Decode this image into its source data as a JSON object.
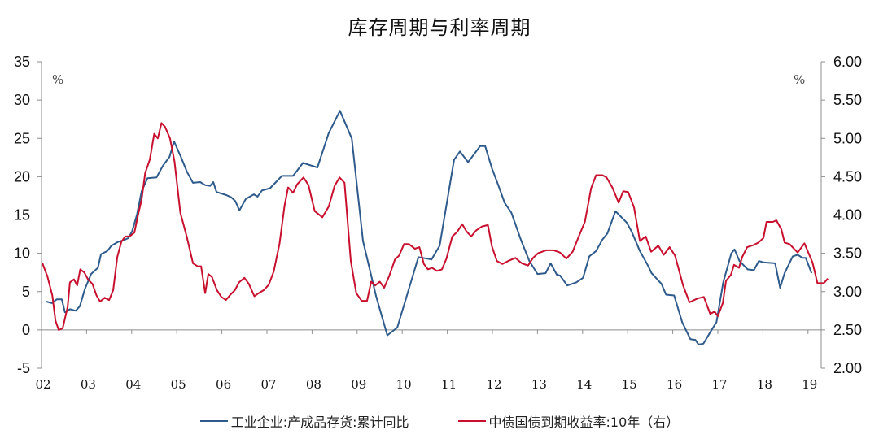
{
  "chart_data": {
    "type": "line",
    "title": "库存周期与利率周期",
    "xlabel": "",
    "x_tick_labels": [
      "02",
      "03",
      "04",
      "05",
      "06",
      "07",
      "08",
      "09",
      "10",
      "11",
      "12",
      "13",
      "14",
      "15",
      "16",
      "17",
      "18",
      "19"
    ],
    "x_range": [
      2002,
      2019.2
    ],
    "left_axis": {
      "unit": "%",
      "ylim": [
        -5,
        35
      ],
      "ticks": [
        35,
        30,
        25,
        20,
        15,
        10,
        5,
        0,
        -5
      ],
      "tick_labels": [
        "35",
        "30",
        "25",
        "20",
        "15",
        "10",
        "5",
        "0",
        "-5"
      ]
    },
    "right_axis": {
      "unit": "%",
      "ylim": [
        2.0,
        6.0
      ],
      "ticks": [
        6.0,
        5.5,
        5.0,
        4.5,
        4.0,
        3.5,
        3.0,
        2.5,
        2.0
      ],
      "tick_labels": [
        "6.00",
        "5.50",
        "5.00",
        "4.50",
        "4.00",
        "3.50",
        "3.00",
        "2.50",
        "2.00"
      ]
    },
    "grid": false,
    "legend_position": "bottom",
    "series": [
      {
        "name": "工业企业:产成品存货:累计同比",
        "axis": "left",
        "color": "#2E5A8C",
        "points": [
          [
            2002.11,
            3.7
          ],
          [
            2002.23,
            3.5
          ],
          [
            2002.34,
            4.0
          ],
          [
            2002.45,
            4.0
          ],
          [
            2002.52,
            2.3
          ],
          [
            2002.63,
            2.7
          ],
          [
            2002.76,
            2.5
          ],
          [
            2002.85,
            3.1
          ],
          [
            2002.96,
            5.3
          ],
          [
            2003.1,
            7.3
          ],
          [
            2003.25,
            8.1
          ],
          [
            2003.32,
            9.9
          ],
          [
            2003.46,
            10.3
          ],
          [
            2003.55,
            11.0
          ],
          [
            2003.7,
            11.5
          ],
          [
            2003.82,
            11.7
          ],
          [
            2003.93,
            12.0
          ],
          [
            2004.01,
            12.9
          ],
          [
            2004.12,
            15.1
          ],
          [
            2004.22,
            18.1
          ],
          [
            2004.35,
            19.8
          ],
          [
            2004.55,
            19.9
          ],
          [
            2004.69,
            21.4
          ],
          [
            2004.84,
            22.6
          ],
          [
            2004.94,
            24.6
          ],
          [
            2005.09,
            22.6
          ],
          [
            2005.23,
            20.6
          ],
          [
            2005.36,
            19.2
          ],
          [
            2005.52,
            19.3
          ],
          [
            2005.63,
            18.9
          ],
          [
            2005.74,
            18.8
          ],
          [
            2005.81,
            19.3
          ],
          [
            2005.88,
            18.0
          ],
          [
            2006.1,
            17.6
          ],
          [
            2006.21,
            17.3
          ],
          [
            2006.3,
            16.8
          ],
          [
            2006.39,
            15.6
          ],
          [
            2006.53,
            17.1
          ],
          [
            2006.71,
            17.7
          ],
          [
            2006.79,
            17.4
          ],
          [
            2006.89,
            18.2
          ],
          [
            2007.07,
            18.5
          ],
          [
            2007.33,
            20.1
          ],
          [
            2007.58,
            20.1
          ],
          [
            2007.8,
            21.8
          ],
          [
            2008.12,
            21.2
          ],
          [
            2008.37,
            25.7
          ],
          [
            2008.62,
            28.6
          ],
          [
            2008.88,
            25.0
          ],
          [
            2009.13,
            11.6
          ],
          [
            2009.42,
            4.4
          ],
          [
            2009.67,
            -0.7
          ],
          [
            2009.89,
            0.3
          ],
          [
            2010.36,
            9.5
          ],
          [
            2010.65,
            9.2
          ],
          [
            2010.83,
            11.0
          ],
          [
            2011.15,
            22.2
          ],
          [
            2011.28,
            23.3
          ],
          [
            2011.46,
            21.9
          ],
          [
            2011.73,
            24.0
          ],
          [
            2011.84,
            24.0
          ],
          [
            2011.99,
            21.1
          ],
          [
            2012.13,
            18.9
          ],
          [
            2012.27,
            16.6
          ],
          [
            2012.42,
            15.3
          ],
          [
            2012.63,
            11.8
          ],
          [
            2012.82,
            9.0
          ],
          [
            2013.0,
            7.3
          ],
          [
            2013.18,
            7.4
          ],
          [
            2013.29,
            8.7
          ],
          [
            2013.43,
            7.2
          ],
          [
            2013.5,
            7.1
          ],
          [
            2013.66,
            5.8
          ],
          [
            2013.86,
            6.2
          ],
          [
            2014.01,
            6.8
          ],
          [
            2014.15,
            9.6
          ],
          [
            2014.3,
            10.3
          ],
          [
            2014.44,
            11.8
          ],
          [
            2014.55,
            12.6
          ],
          [
            2014.73,
            15.5
          ],
          [
            2014.98,
            14.0
          ],
          [
            2015.09,
            12.8
          ],
          [
            2015.27,
            10.3
          ],
          [
            2015.45,
            8.4
          ],
          [
            2015.53,
            7.4
          ],
          [
            2015.75,
            6.0
          ],
          [
            2015.85,
            4.6
          ],
          [
            2016.03,
            4.5
          ],
          [
            2016.21,
            1.0
          ],
          [
            2016.39,
            -1.2
          ],
          [
            2016.5,
            -1.3
          ],
          [
            2016.57,
            -1.9
          ],
          [
            2016.68,
            -1.8
          ],
          [
            2016.83,
            -0.3
          ],
          [
            2016.97,
            1.0
          ],
          [
            2017.12,
            6.2
          ],
          [
            2017.3,
            10.0
          ],
          [
            2017.37,
            10.5
          ],
          [
            2017.48,
            9.0
          ],
          [
            2017.66,
            7.9
          ],
          [
            2017.8,
            7.8
          ],
          [
            2017.91,
            9.0
          ],
          [
            2018.02,
            8.8
          ],
          [
            2018.27,
            8.7
          ],
          [
            2018.38,
            5.5
          ],
          [
            2018.48,
            7.4
          ],
          [
            2018.66,
            9.6
          ],
          [
            2018.77,
            9.8
          ],
          [
            2018.88,
            9.4
          ],
          [
            2018.95,
            9.4
          ],
          [
            2019.08,
            7.4
          ]
        ]
      },
      {
        "name": "中债国债到期收益率:10年（右）",
        "axis": "right",
        "color": "#C8102E",
        "points": [
          [
            2002.02,
            3.37
          ],
          [
            2002.13,
            3.2
          ],
          [
            2002.24,
            2.95
          ],
          [
            2002.31,
            2.62
          ],
          [
            2002.38,
            2.5
          ],
          [
            2002.47,
            2.52
          ],
          [
            2002.58,
            2.8
          ],
          [
            2002.63,
            3.12
          ],
          [
            2002.72,
            3.16
          ],
          [
            2002.79,
            3.08
          ],
          [
            2002.86,
            3.29
          ],
          [
            2002.95,
            3.25
          ],
          [
            2003.03,
            3.16
          ],
          [
            2003.13,
            3.1
          ],
          [
            2003.22,
            2.95
          ],
          [
            2003.3,
            2.87
          ],
          [
            2003.4,
            2.92
          ],
          [
            2003.5,
            2.89
          ],
          [
            2003.59,
            3.02
          ],
          [
            2003.68,
            3.45
          ],
          [
            2003.77,
            3.65
          ],
          [
            2003.86,
            3.72
          ],
          [
            2003.95,
            3.72
          ],
          [
            2004.06,
            3.77
          ],
          [
            2004.14,
            4.0
          ],
          [
            2004.22,
            4.2
          ],
          [
            2004.3,
            4.55
          ],
          [
            2004.4,
            4.72
          ],
          [
            2004.5,
            5.06
          ],
          [
            2004.58,
            5.0
          ],
          [
            2004.66,
            5.2
          ],
          [
            2004.74,
            5.15
          ],
          [
            2004.85,
            5.0
          ],
          [
            2004.95,
            4.7
          ],
          [
            2005.08,
            4.03
          ],
          [
            2005.22,
            3.72
          ],
          [
            2005.36,
            3.37
          ],
          [
            2005.46,
            3.33
          ],
          [
            2005.54,
            3.33
          ],
          [
            2005.63,
            2.98
          ],
          [
            2005.7,
            3.23
          ],
          [
            2005.78,
            3.19
          ],
          [
            2005.89,
            3.02
          ],
          [
            2005.99,
            2.93
          ],
          [
            2006.09,
            2.89
          ],
          [
            2006.19,
            2.96
          ],
          [
            2006.29,
            3.02
          ],
          [
            2006.38,
            3.12
          ],
          [
            2006.5,
            3.18
          ],
          [
            2006.6,
            3.1
          ],
          [
            2006.72,
            2.94
          ],
          [
            2006.82,
            2.98
          ],
          [
            2006.93,
            3.02
          ],
          [
            2007.04,
            3.09
          ],
          [
            2007.15,
            3.26
          ],
          [
            2007.28,
            3.63
          ],
          [
            2007.39,
            4.12
          ],
          [
            2007.47,
            4.36
          ],
          [
            2007.58,
            4.29
          ],
          [
            2007.67,
            4.4
          ],
          [
            2007.81,
            4.49
          ],
          [
            2007.92,
            4.39
          ],
          [
            2008.06,
            4.05
          ],
          [
            2008.23,
            3.97
          ],
          [
            2008.37,
            4.11
          ],
          [
            2008.5,
            4.38
          ],
          [
            2008.61,
            4.49
          ],
          [
            2008.72,
            4.42
          ],
          [
            2008.86,
            3.4
          ],
          [
            2008.98,
            2.98
          ],
          [
            2009.1,
            2.88
          ],
          [
            2009.22,
            2.88
          ],
          [
            2009.31,
            3.13
          ],
          [
            2009.4,
            3.08
          ],
          [
            2009.5,
            3.13
          ],
          [
            2009.6,
            3.05
          ],
          [
            2009.71,
            3.2
          ],
          [
            2009.84,
            3.42
          ],
          [
            2009.93,
            3.47
          ],
          [
            2010.04,
            3.62
          ],
          [
            2010.15,
            3.62
          ],
          [
            2010.28,
            3.56
          ],
          [
            2010.38,
            3.58
          ],
          [
            2010.48,
            3.36
          ],
          [
            2010.57,
            3.29
          ],
          [
            2010.66,
            3.31
          ],
          [
            2010.77,
            3.27
          ],
          [
            2010.88,
            3.29
          ],
          [
            2010.98,
            3.43
          ],
          [
            2011.11,
            3.72
          ],
          [
            2011.22,
            3.78
          ],
          [
            2011.33,
            3.88
          ],
          [
            2011.42,
            3.79
          ],
          [
            2011.53,
            3.72
          ],
          [
            2011.64,
            3.8
          ],
          [
            2011.77,
            3.85
          ],
          [
            2011.9,
            3.87
          ],
          [
            2011.99,
            3.59
          ],
          [
            2012.1,
            3.4
          ],
          [
            2012.22,
            3.36
          ],
          [
            2012.35,
            3.4
          ],
          [
            2012.51,
            3.44
          ],
          [
            2012.65,
            3.37
          ],
          [
            2012.79,
            3.34
          ],
          [
            2012.9,
            3.44
          ],
          [
            2013.01,
            3.5
          ],
          [
            2013.19,
            3.54
          ],
          [
            2013.36,
            3.54
          ],
          [
            2013.5,
            3.51
          ],
          [
            2013.64,
            3.43
          ],
          [
            2013.78,
            3.52
          ],
          [
            2013.93,
            3.74
          ],
          [
            2014.05,
            3.91
          ],
          [
            2014.19,
            4.35
          ],
          [
            2014.3,
            4.52
          ],
          [
            2014.44,
            4.52
          ],
          [
            2014.53,
            4.49
          ],
          [
            2014.66,
            4.36
          ],
          [
            2014.8,
            4.16
          ],
          [
            2014.9,
            4.31
          ],
          [
            2015.01,
            4.3
          ],
          [
            2015.14,
            4.1
          ],
          [
            2015.27,
            3.66
          ],
          [
            2015.4,
            3.72
          ],
          [
            2015.52,
            3.52
          ],
          [
            2015.68,
            3.6
          ],
          [
            2015.8,
            3.48
          ],
          [
            2015.93,
            3.58
          ],
          [
            2016.05,
            3.47
          ],
          [
            2016.23,
            3.08
          ],
          [
            2016.37,
            2.86
          ],
          [
            2016.55,
            2.91
          ],
          [
            2016.69,
            2.93
          ],
          [
            2016.83,
            2.71
          ],
          [
            2016.93,
            2.74
          ],
          [
            2017.0,
            2.68
          ],
          [
            2017.11,
            2.85
          ],
          [
            2017.18,
            3.14
          ],
          [
            2017.29,
            3.22
          ],
          [
            2017.36,
            3.35
          ],
          [
            2017.47,
            3.31
          ],
          [
            2017.54,
            3.45
          ],
          [
            2017.65,
            3.58
          ],
          [
            2017.8,
            3.61
          ],
          [
            2017.9,
            3.64
          ],
          [
            2018.01,
            3.7
          ],
          [
            2018.08,
            3.91
          ],
          [
            2018.22,
            3.91
          ],
          [
            2018.3,
            3.93
          ],
          [
            2018.41,
            3.81
          ],
          [
            2018.48,
            3.64
          ],
          [
            2018.59,
            3.62
          ],
          [
            2018.77,
            3.51
          ],
          [
            2018.92,
            3.63
          ],
          [
            2019.1,
            3.38
          ],
          [
            2019.21,
            3.11
          ],
          [
            2019.35,
            3.11
          ],
          [
            2019.44,
            3.17
          ]
        ]
      }
    ]
  }
}
